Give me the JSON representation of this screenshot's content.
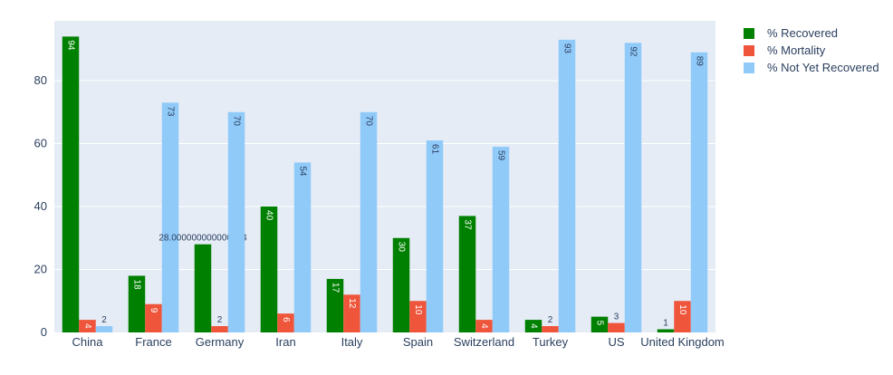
{
  "chart_data": {
    "type": "bar",
    "categories": [
      "China",
      "France",
      "Germany",
      "Iran",
      "Italy",
      "Spain",
      "Switzerland",
      "Turkey",
      "US",
      "United Kingdom"
    ],
    "series": [
      {
        "name": "% Recovered",
        "color": "#008000",
        "values": [
          94,
          18,
          28,
          40,
          17,
          30,
          37,
          4,
          5,
          1
        ],
        "labels": [
          "94",
          "18",
          "28.000000000000004",
          "40",
          "17",
          "30",
          "37",
          "4",
          "5",
          "1"
        ]
      },
      {
        "name": "% Mortality",
        "color": "#EF553B",
        "values": [
          4,
          9,
          2,
          6,
          12,
          10,
          4,
          2,
          3,
          10
        ],
        "labels": [
          "4",
          "9",
          "2",
          "6",
          "12",
          "10",
          "4",
          "2",
          "3",
          "10"
        ]
      },
      {
        "name": "% Not Yet Recovered",
        "color": "#90CAF9",
        "values": [
          2,
          73,
          70,
          54,
          70,
          61,
          59,
          93,
          92,
          89
        ],
        "labels": [
          "2",
          "73",
          "70",
          "54",
          "70",
          "61",
          "59",
          "93",
          "92",
          "89"
        ]
      }
    ],
    "ylim": [
      0,
      99
    ],
    "yticks": [
      0,
      20,
      40,
      60,
      80
    ],
    "grid": true,
    "legend_position": "top-right",
    "title": "",
    "xlabel": "",
    "ylabel": "",
    "plot_bgcolor": "#E5ECF6"
  }
}
